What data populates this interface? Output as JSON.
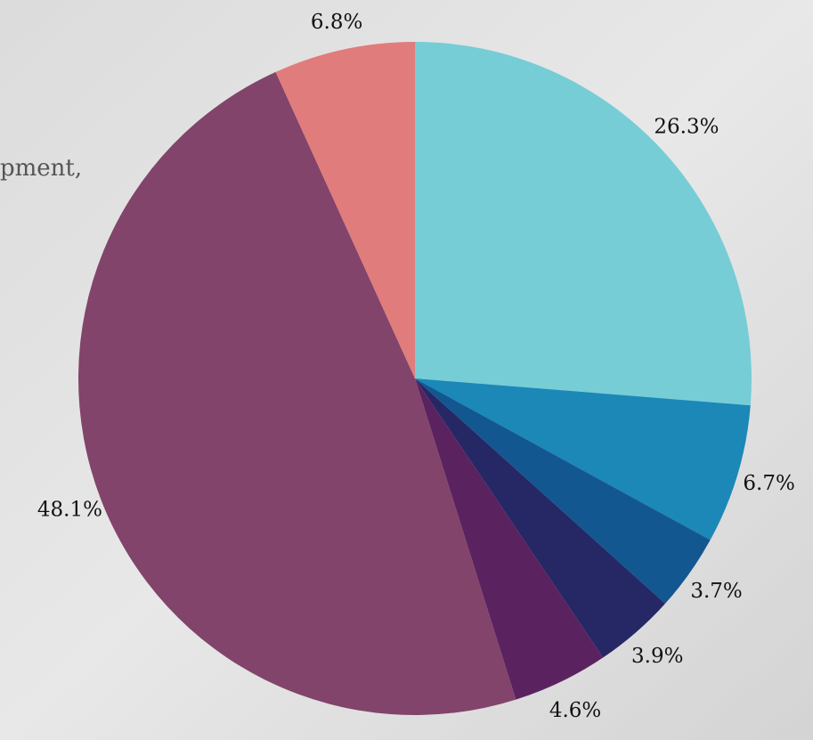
{
  "chart_data": {
    "type": "pie",
    "annotations": [
      "pment,"
    ],
    "values": [
      26.3,
      6.7,
      3.7,
      3.9,
      4.6,
      48.1,
      6.8
    ],
    "value_labels": [
      "26.3%",
      "6.7%",
      "3.7%",
      "3.9%",
      "4.6%",
      "48.1%",
      "6.8%"
    ],
    "colors": [
      "#76cdd6",
      "#1b88b7",
      "#135791",
      "#262765",
      "#5a2360",
      "#82446b",
      "#e17c7d"
    ]
  }
}
